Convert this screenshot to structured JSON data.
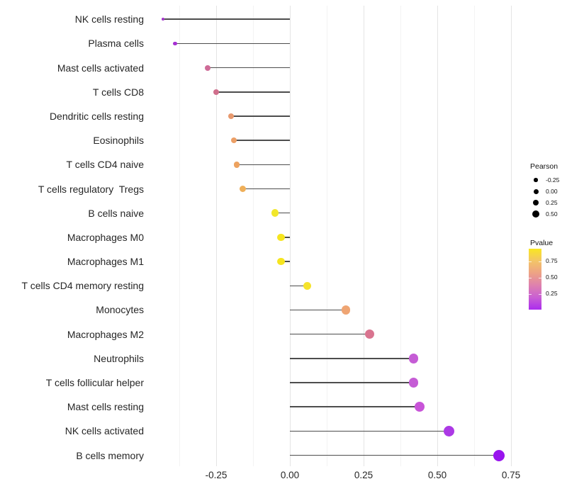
{
  "chart_data": {
    "type": "lollipop (horizontal stem + point)",
    "title": "",
    "xlabel": "",
    "ylabel": "",
    "xlim": [
      -0.49,
      0.78
    ],
    "grid": "vertical major and minor gridlines, white background, no axis ticks",
    "x_ticks": [
      {
        "value": -0.25,
        "label": "-0.25"
      },
      {
        "value": 0.0,
        "label": "0.00"
      },
      {
        "value": 0.25,
        "label": "0.25"
      },
      {
        "value": 0.5,
        "label": "0.50"
      },
      {
        "value": 0.75,
        "label": "0.75"
      }
    ],
    "points": [
      {
        "label": "NK cells resting",
        "pearson": -0.43,
        "color": "#a335cb",
        "size": 4.5
      },
      {
        "label": "Plasma cells",
        "pearson": -0.39,
        "color": "#a52fd2",
        "size": 5.5
      },
      {
        "label": "Mast cells activated",
        "pearson": -0.28,
        "color": "#ce6b97",
        "size": 8
      },
      {
        "label": "T cells CD8",
        "pearson": -0.25,
        "color": "#d06f8c",
        "size": 8
      },
      {
        "label": "Dendritic cells resting",
        "pearson": -0.2,
        "color": "#e8996e",
        "size": 8.5
      },
      {
        "label": "Eosinophils",
        "pearson": -0.19,
        "color": "#ec9f66",
        "size": 8.5
      },
      {
        "label": "T cells CD4 naive",
        "pearson": -0.18,
        "color": "#eda25f",
        "size": 8.5
      },
      {
        "label": "T cells regulatory  Tregs",
        "pearson": -0.16,
        "color": "#efaf59",
        "size": 9
      },
      {
        "label": "B cells naive",
        "pearson": -0.05,
        "color": "#f1e72b",
        "size": 10.5
      },
      {
        "label": "Macrophages M0",
        "pearson": -0.03,
        "color": "#f6e51f",
        "size": 10.5
      },
      {
        "label": "Macrophages M1",
        "pearson": -0.03,
        "color": "#f6e51f",
        "size": 10.5
      },
      {
        "label": "T cells CD4 memory resting",
        "pearson": 0.06,
        "color": "#f5e32c",
        "size": 11
      },
      {
        "label": "Monocytes",
        "pearson": 0.19,
        "color": "#efa573",
        "size": 12.5
      },
      {
        "label": "Macrophages M2",
        "pearson": 0.27,
        "color": "#d9748f",
        "size": 13
      },
      {
        "label": "Neutrophils",
        "pearson": 0.42,
        "color": "#c55cd5",
        "size": 13.5
      },
      {
        "label": "T cells follicular helper",
        "pearson": 0.42,
        "color": "#c55cd5",
        "size": 13.5
      },
      {
        "label": "Mast cells resting",
        "pearson": 0.44,
        "color": "#c854d8",
        "size": 14
      },
      {
        "label": "NK cells activated",
        "pearson": 0.54,
        "color": "#ac39e5",
        "size": 15
      },
      {
        "label": "B cells memory",
        "pearson": 0.71,
        "color": "#9914ee",
        "size": 16
      }
    ],
    "size_legend": {
      "title": "Pearson",
      "items": [
        {
          "label": "-0.25",
          "size": 5.5
        },
        {
          "label": "0.00",
          "size": 7
        },
        {
          "label": "0.25",
          "size": 8.5
        },
        {
          "label": "0.50",
          "size": 10
        }
      ]
    },
    "color_legend": {
      "title": "Pvalue",
      "ticks": [
        {
          "value": 0.75,
          "label": "0.75"
        },
        {
          "value": 0.5,
          "label": "0.50"
        },
        {
          "value": 0.25,
          "label": "0.25"
        }
      ],
      "gradient_top_to_bottom": [
        "#f9e721",
        "#f3c567",
        "#eda285",
        "#de81ae",
        "#c95fd3",
        "#ab2cee"
      ]
    },
    "stem_color": "#4d4d4d",
    "accent_colors": {
      "axis_text": "#262626",
      "major_grid": "#e4e4e4",
      "minor_grid": "#f3f3f3"
    }
  }
}
